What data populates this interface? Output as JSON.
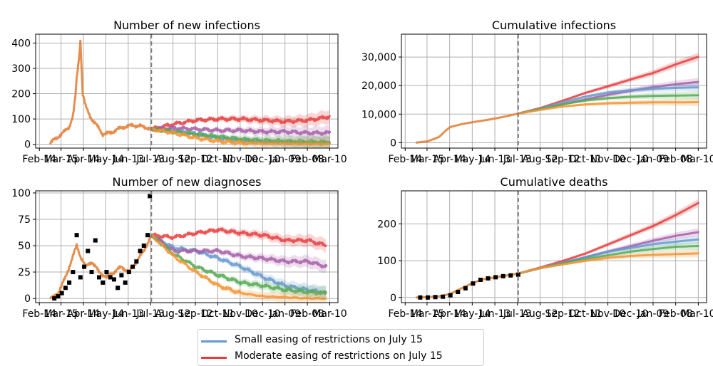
{
  "colors": {
    "small": "#6699cc",
    "moderate": "#e83e3e",
    "purple": "#a85ea8",
    "green": "#55aa55",
    "orange": "#f29433",
    "baseline": "#e07a2f",
    "data": "#000000",
    "grid": "#b0b0b0"
  },
  "legend": {
    "items": [
      {
        "label": "Small easing of restrictions on July 15",
        "color": "#6699cc"
      },
      {
        "label": "Moderate easing of restrictions on July 15",
        "color": "#e83e3e"
      }
    ]
  },
  "chart_data": [
    {
      "type": "line",
      "title": "Number of new infections",
      "x_ticks": [
        "Feb-14",
        "Mar-15",
        "Apr-14",
        "May-14",
        "Jun-13",
        "Jul-13",
        "Aug-12",
        "Sep-12",
        "Oct-11",
        "Nov-10",
        "Dec-10",
        "Jan-09",
        "Feb-08",
        "Mar-10"
      ],
      "y_ticks": [
        "0",
        "100",
        "200",
        "300",
        "400"
      ],
      "ylim": [
        -15,
        435
      ],
      "xlim_days": [
        -5,
        400
      ],
      "intervention_day": 150,
      "grid": true,
      "series": [
        {
          "key": "baseline",
          "x": [
            14,
            20,
            30,
            40,
            45,
            48,
            50,
            53,
            55,
            58,
            62,
            65,
            70,
            78,
            85,
            95,
            105,
            115,
            125,
            135,
            145,
            150
          ],
          "y": [
            0,
            20,
            40,
            70,
            110,
            180,
            260,
            340,
            410,
            200,
            150,
            130,
            100,
            70,
            40,
            45,
            60,
            70,
            75,
            72,
            65,
            60
          ]
        },
        {
          "key": "small",
          "x": [
            150,
            180,
            210,
            240,
            270,
            300,
            330,
            360,
            390
          ],
          "y": [
            60,
            55,
            40,
            25,
            15,
            10,
            8,
            6,
            5
          ]
        },
        {
          "key": "moderate",
          "x": [
            150,
            180,
            210,
            240,
            270,
            300,
            330,
            360,
            390
          ],
          "y": [
            60,
            80,
            95,
            100,
            100,
            95,
            90,
            95,
            110
          ]
        },
        {
          "key": "purple",
          "x": [
            150,
            180,
            210,
            240,
            270,
            300,
            330,
            360,
            390
          ],
          "y": [
            60,
            65,
            60,
            55,
            55,
            50,
            50,
            45,
            45
          ]
        },
        {
          "key": "green",
          "x": [
            150,
            180,
            210,
            240,
            270,
            300,
            330,
            360,
            390
          ],
          "y": [
            60,
            50,
            40,
            30,
            20,
            15,
            12,
            10,
            8
          ]
        },
        {
          "key": "orange",
          "x": [
            150,
            180,
            210,
            240,
            270,
            300,
            330,
            360,
            390
          ],
          "y": [
            60,
            45,
            25,
            12,
            6,
            3,
            2,
            1,
            1
          ]
        }
      ]
    },
    {
      "type": "line",
      "title": "Cumulative infections",
      "x_ticks": [
        "Feb-14",
        "Mar-15",
        "Apr-14",
        "May-14",
        "Jun-13",
        "Jul-13",
        "Aug-12",
        "Sep-12",
        "Oct-11",
        "Nov-10",
        "Dec-10",
        "Jan-09",
        "Feb-08",
        "Mar-10"
      ],
      "y_ticks": [
        "0",
        "10,000",
        "20,000",
        "30,000"
      ],
      "ylim": [
        -1900,
        38000
      ],
      "xlim_days": [
        -5,
        400
      ],
      "intervention_day": 150,
      "grid": true,
      "series": [
        {
          "key": "baseline",
          "x": [
            14,
            30,
            45,
            55,
            60,
            75,
            90,
            105,
            120,
            135,
            150
          ],
          "y": [
            0,
            500,
            2000,
            4500,
            5500,
            6500,
            7200,
            7800,
            8500,
            9300,
            10200
          ]
        },
        {
          "key": "moderate",
          "x": [
            150,
            180,
            210,
            240,
            270,
            300,
            330,
            360,
            390
          ],
          "y": [
            10200,
            12200,
            14800,
            17500,
            19800,
            22200,
            24500,
            27500,
            30200
          ]
        },
        {
          "key": "purple",
          "x": [
            150,
            180,
            210,
            240,
            270,
            300,
            330,
            360,
            390
          ],
          "y": [
            10200,
            11800,
            13500,
            15200,
            16800,
            18200,
            19500,
            20500,
            21300
          ]
        },
        {
          "key": "small",
          "x": [
            150,
            180,
            210,
            240,
            270,
            300,
            330,
            360,
            390
          ],
          "y": [
            10200,
            12000,
            14200,
            16200,
            17600,
            18400,
            18900,
            19200,
            19400
          ]
        },
        {
          "key": "green",
          "x": [
            150,
            180,
            210,
            240,
            270,
            300,
            330,
            360,
            390
          ],
          "y": [
            10200,
            11800,
            13500,
            14800,
            15600,
            16100,
            16400,
            16500,
            16600
          ]
        },
        {
          "key": "orange",
          "x": [
            150,
            180,
            210,
            240,
            270,
            300,
            330,
            360,
            390
          ],
          "y": [
            10200,
            11500,
            12700,
            13400,
            13800,
            14000,
            14100,
            14100,
            14200
          ]
        }
      ]
    },
    {
      "type": "line",
      "title": "Number of new diagnoses",
      "x_ticks": [
        "Feb-14",
        "Mar-15",
        "Apr-14",
        "May-14",
        "Jun-13",
        "Jul-13",
        "Aug-12",
        "Sep-12",
        "Oct-11",
        "Nov-10",
        "Dec-10",
        "Jan-09",
        "Feb-08",
        "Mar-10"
      ],
      "y_ticks": [
        "0",
        "25",
        "50",
        "75",
        "100"
      ],
      "ylim": [
        -4,
        102
      ],
      "xlim_days": [
        -5,
        400
      ],
      "intervention_day": 150,
      "grid": true,
      "series": [
        {
          "key": "baseline",
          "x": [
            14,
            25,
            35,
            45,
            50,
            55,
            62,
            70,
            80,
            90,
            100,
            110,
            120,
            130,
            140,
            150
          ],
          "y": [
            0,
            5,
            20,
            40,
            50,
            40,
            30,
            35,
            25,
            20,
            25,
            30,
            25,
            35,
            45,
            60
          ]
        },
        {
          "key": "small",
          "x": [
            150,
            180,
            210,
            240,
            270,
            300,
            330,
            360,
            385
          ],
          "y": [
            60,
            48,
            45,
            38,
            30,
            20,
            12,
            8,
            5
          ]
        },
        {
          "key": "moderate",
          "x": [
            150,
            180,
            210,
            240,
            270,
            300,
            330,
            360,
            385
          ],
          "y": [
            60,
            58,
            62,
            65,
            62,
            60,
            55,
            55,
            50
          ]
        },
        {
          "key": "purple",
          "x": [
            150,
            180,
            210,
            240,
            270,
            300,
            330,
            360,
            385
          ],
          "y": [
            60,
            45,
            45,
            45,
            40,
            38,
            35,
            35,
            30
          ]
        },
        {
          "key": "green",
          "x": [
            150,
            180,
            210,
            240,
            270,
            300,
            330,
            360,
            385
          ],
          "y": [
            60,
            42,
            30,
            22,
            15,
            12,
            8,
            6,
            5
          ]
        },
        {
          "key": "orange",
          "x": [
            150,
            180,
            210,
            240,
            270,
            300,
            330,
            360,
            385
          ],
          "y": [
            60,
            40,
            25,
            12,
            5,
            2,
            1,
            0,
            0
          ]
        }
      ],
      "observed": {
        "x": [
          20,
          25,
          30,
          35,
          40,
          45,
          50,
          55,
          60,
          65,
          70,
          75,
          80,
          85,
          90,
          95,
          100,
          105,
          110,
          115,
          120,
          125,
          130,
          135,
          140,
          145,
          148
        ],
        "y": [
          0,
          2,
          5,
          10,
          15,
          25,
          60,
          20,
          30,
          45,
          25,
          55,
          20,
          15,
          25,
          20,
          18,
          10,
          22,
          15,
          25,
          30,
          35,
          45,
          50,
          60,
          97
        ]
      }
    },
    {
      "type": "line",
      "title": "Cumulative deaths",
      "x_ticks": [
        "Feb-14",
        "Mar-15",
        "Apr-14",
        "May-14",
        "Jun-13",
        "Jul-13",
        "Aug-12",
        "Sep-12",
        "Oct-11",
        "Nov-10",
        "Dec-10",
        "Jan-09",
        "Feb-08",
        "Mar-10"
      ],
      "y_ticks": [
        "0",
        "100",
        "200"
      ],
      "ylim": [
        -14,
        290
      ],
      "xlim_days": [
        -5,
        400
      ],
      "intervention_day": 150,
      "grid": true,
      "series": [
        {
          "key": "baseline",
          "x": [
            14,
            30,
            45,
            60,
            75,
            90,
            105,
            120,
            135,
            150
          ],
          "y": [
            0,
            1,
            3,
            10,
            25,
            40,
            50,
            55,
            60,
            65
          ]
        },
        {
          "key": "moderate",
          "x": [
            150,
            180,
            210,
            240,
            270,
            300,
            330,
            360,
            390
          ],
          "y": [
            65,
            82,
            100,
            120,
            145,
            170,
            195,
            225,
            258
          ]
        },
        {
          "key": "purple",
          "x": [
            150,
            180,
            210,
            240,
            270,
            300,
            330,
            360,
            390
          ],
          "y": [
            65,
            80,
            95,
            110,
            125,
            140,
            155,
            168,
            178
          ]
        },
        {
          "key": "small",
          "x": [
            150,
            180,
            210,
            240,
            270,
            300,
            330,
            360,
            390
          ],
          "y": [
            65,
            80,
            95,
            110,
            125,
            135,
            145,
            152,
            158
          ]
        },
        {
          "key": "green",
          "x": [
            150,
            180,
            210,
            240,
            270,
            300,
            330,
            360,
            390
          ],
          "y": [
            65,
            80,
            93,
            105,
            115,
            125,
            132,
            138,
            140
          ]
        },
        {
          "key": "orange",
          "x": [
            150,
            180,
            210,
            240,
            270,
            300,
            330,
            360,
            390
          ],
          "y": [
            65,
            80,
            90,
            100,
            108,
            113,
            116,
            118,
            120
          ]
        }
      ],
      "observed": {
        "x": [
          20,
          30,
          40,
          50,
          60,
          70,
          80,
          90,
          100,
          110,
          120,
          130,
          140,
          150
        ],
        "y": [
          0,
          0,
          1,
          2,
          6,
          15,
          25,
          38,
          48,
          52,
          55,
          58,
          60,
          62
        ]
      }
    }
  ]
}
